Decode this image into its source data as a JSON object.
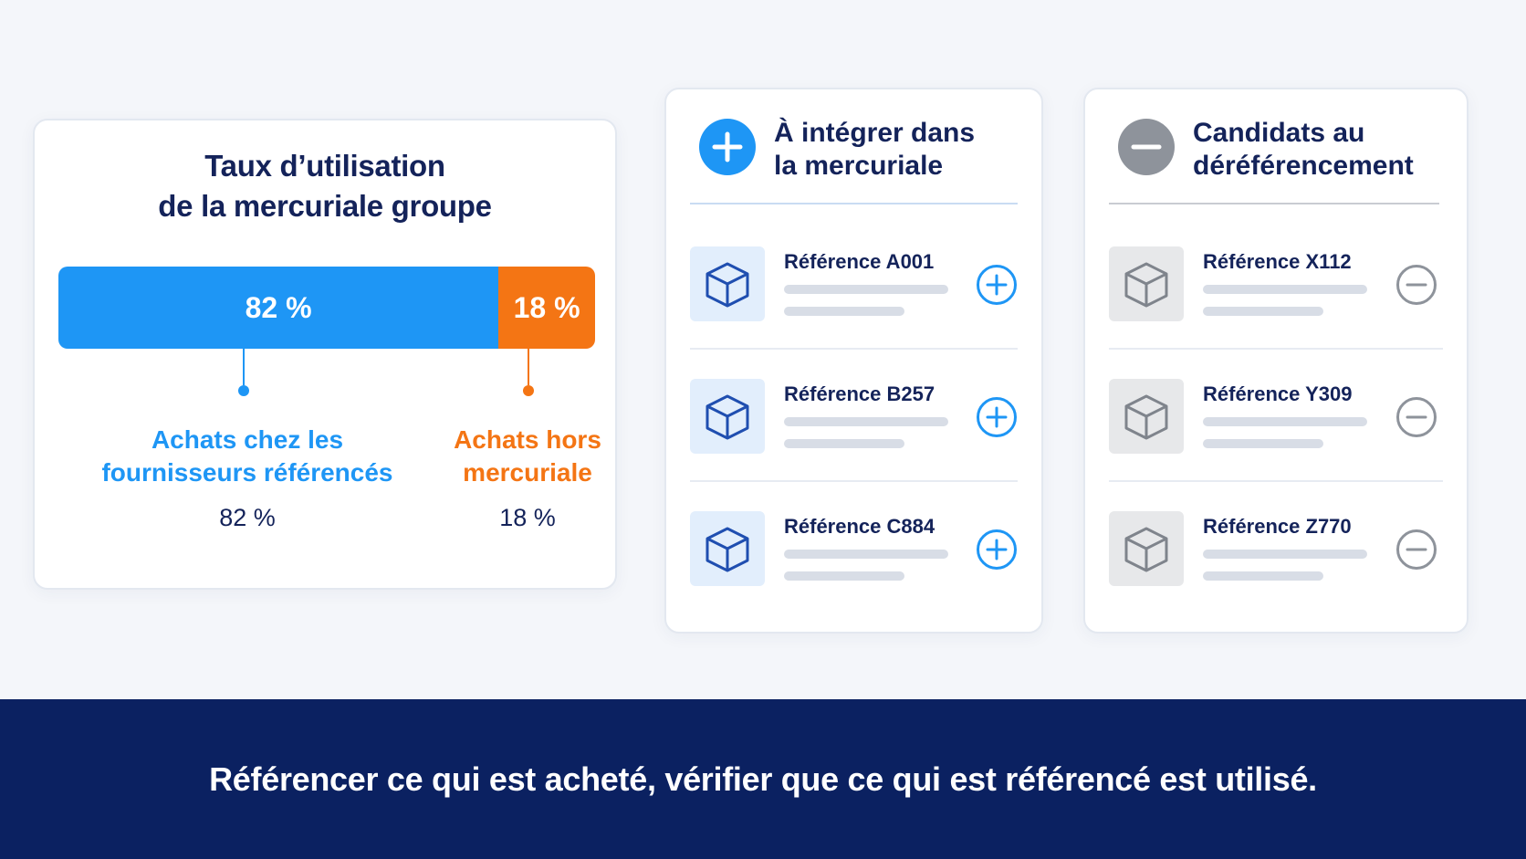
{
  "utilization": {
    "title_line1": "Taux d’utilisation",
    "title_line2": "de la mercuriale groupe",
    "in_percent": 82,
    "out_percent": 18,
    "in_bar_label": "82 %",
    "out_bar_label": "18 %",
    "in_label_line1": "Achats chez les",
    "in_label_line2": "fournisseurs référencés",
    "in_value": "82 %",
    "out_label_line1": "Achats hors",
    "out_label_line2": "mercuriale",
    "out_value": "18 %",
    "colors": {
      "in": "#1e96f5",
      "out": "#f47514",
      "title": "#14235a"
    }
  },
  "add_list": {
    "title_line1": "À intégrer dans",
    "title_line2": "la mercuriale",
    "header_icon": "plus-circle-icon",
    "accent": "#1e96f5",
    "items": [
      {
        "label": "Référence A001",
        "icon": "box-icon",
        "action_icon": "add-circle-icon"
      },
      {
        "label": "Référence B257",
        "icon": "box-icon",
        "action_icon": "add-circle-icon"
      },
      {
        "label": "Référence C884",
        "icon": "box-icon",
        "action_icon": "add-circle-icon"
      }
    ]
  },
  "remove_list": {
    "title_line1": "Candidats au",
    "title_line2": "déréférencement",
    "header_icon": "minus-circle-icon",
    "accent": "#8e939b",
    "items": [
      {
        "label": "Référence X112",
        "icon": "box-icon",
        "action_icon": "remove-circle-icon"
      },
      {
        "label": "Référence Y309",
        "icon": "box-icon",
        "action_icon": "remove-circle-icon"
      },
      {
        "label": "Référence Z770",
        "icon": "box-icon",
        "action_icon": "remove-circle-icon"
      }
    ]
  },
  "banner": {
    "text": "Référencer ce qui est acheté, vérifier que ce qui est référencé est utilisé.",
    "background": "#0b2161"
  }
}
